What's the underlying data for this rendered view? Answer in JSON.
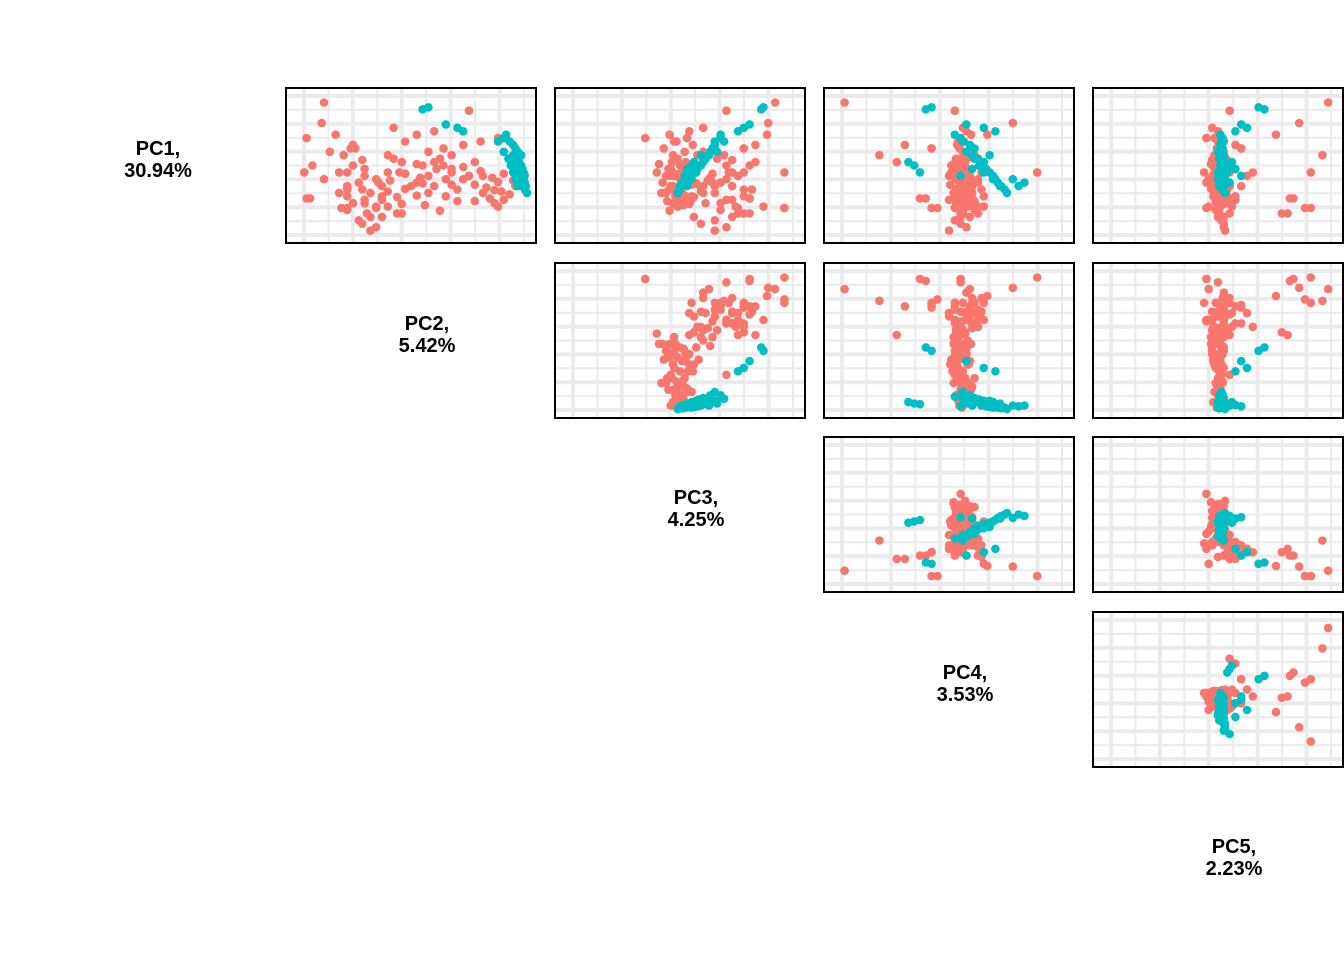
{
  "colors": {
    "group_a": "#F8766D",
    "group_b": "#00BFC4",
    "grid": "#EBEBEB",
    "panel_border": "#000000",
    "background": "#FFFFFF"
  },
  "chart_data": {
    "type": "scatter",
    "layout": "pairs-matrix-upper-triangle",
    "grid": true,
    "legend": "none",
    "axis_ticks_shown": false,
    "diagonal_labels": [
      {
        "line1": "PC1,",
        "line2": "30.94%"
      },
      {
        "line1": "PC2,",
        "line2": "5.42%"
      },
      {
        "line1": "PC3,",
        "line2": "4.25%"
      },
      {
        "line1": "PC4,",
        "line2": "3.53%"
      },
      {
        "line1": "PC5,",
        "line2": "2.23%"
      }
    ],
    "ranges": {
      "PC1": [
        -1.0,
        1.0
      ],
      "PC2": [
        -1.0,
        1.0
      ],
      "PC3": [
        -1.0,
        1.0
      ],
      "PC4": [
        -1.0,
        1.0
      ],
      "PC5": [
        -1.0,
        1.0
      ]
    },
    "groups": [
      "group_a",
      "group_b"
    ],
    "scores": [
      [
        -0.92,
        -0.75,
        0.82,
        -0.9,
        0.95,
        "group_a"
      ],
      [
        0.1,
        -0.92,
        0.9,
        0.76,
        0.8,
        "group_a"
      ],
      [
        0.62,
        -0.6,
        0.9,
        -0.1,
        0.75,
        "group_a"
      ],
      [
        0.62,
        -0.55,
        0.9,
        -0.15,
        0.8,
        "group_a"
      ],
      [
        -0.45,
        -0.65,
        0.75,
        0.33,
        0.5,
        "group_a"
      ],
      [
        -0.25,
        -0.48,
        0.55,
        -0.15,
        0.2,
        "group_a"
      ],
      [
        -0.25,
        -0.52,
        0.55,
        -0.15,
        0.2,
        "group_a"
      ],
      [
        -0.62,
        -0.77,
        0.76,
        0.55,
        0.7,
        "group_a"
      ],
      [
        -0.15,
        -0.58,
        0.38,
        -0.6,
        0.9,
        "group_a"
      ],
      [
        0.7,
        -0.08,
        0.5,
        0.1,
        0.6,
        "group_a"
      ],
      [
        0.7,
        -0.12,
        0.55,
        0.12,
        0.55,
        "group_a"
      ],
      [
        0.48,
        -0.9,
        0.6,
        -0.25,
        0.65,
        "group_a"
      ],
      [
        0.48,
        -0.87,
        0.6,
        -0.2,
        0.62,
        "group_a"
      ],
      [
        -0.3,
        -0.5,
        0.65,
        -0.38,
        0.15,
        "group_a"
      ],
      [
        -0.05,
        -0.08,
        0.65,
        -0.45,
        0.1,
        "group_a"
      ],
      [
        0.0,
        -0.85,
        0.4,
        0.1,
        0.0,
        "group_a"
      ],
      [
        -0.2,
        -0.7,
        0.2,
        0.15,
        0.05,
        "group_a"
      ],
      [
        0.3,
        -0.55,
        0.3,
        0.2,
        0.1,
        "group_a"
      ],
      [
        0.25,
        -0.45,
        0.35,
        0.25,
        0.05,
        "group_a"
      ],
      [
        0.5,
        -0.4,
        0.45,
        0.0,
        0.12,
        "group_a"
      ],
      [
        0.62,
        -0.3,
        0.5,
        0.05,
        -0.1,
        "group_a"
      ],
      [
        0.75,
        -0.25,
        0.45,
        0.1,
        0.05,
        "group_a"
      ],
      [
        0.4,
        -0.35,
        0.3,
        0.15,
        0.0,
        "group_a"
      ],
      [
        0.2,
        -0.3,
        0.4,
        0.25,
        -0.05,
        "group_a"
      ],
      [
        0.1,
        -0.62,
        0.45,
        0.28,
        0.1,
        "group_a"
      ],
      [
        0.0,
        -0.5,
        0.6,
        0.05,
        0.05,
        "group_a"
      ],
      [
        0.35,
        -0.55,
        0.55,
        0.12,
        0.08,
        "group_a"
      ],
      [
        0.55,
        -0.5,
        0.35,
        0.18,
        0.02,
        "group_a"
      ],
      [
        0.65,
        -0.55,
        0.35,
        0.22,
        -0.02,
        "group_a"
      ],
      [
        0.4,
        -0.62,
        0.2,
        0.2,
        0.04,
        "group_a"
      ],
      [
        0.45,
        -0.55,
        0.1,
        0.3,
        0.08,
        "group_a"
      ],
      [
        0.55,
        -0.4,
        0.22,
        0.2,
        0.06,
        "group_a"
      ],
      [
        0.75,
        -0.35,
        0.12,
        0.18,
        0.0,
        "group_a"
      ],
      [
        0.85,
        -0.42,
        0.18,
        0.1,
        0.05,
        "group_a"
      ],
      [
        0.8,
        -0.45,
        0.3,
        0.05,
        0.03,
        "group_a"
      ],
      [
        0.7,
        -0.38,
        0.6,
        0.25,
        0.1,
        "group_a"
      ],
      [
        0.6,
        -0.3,
        0.72,
        0.3,
        -0.08,
        "group_a"
      ],
      [
        0.45,
        -0.25,
        0.55,
        0.05,
        0.15,
        "group_a"
      ],
      [
        0.3,
        -0.25,
        0.45,
        0.2,
        0.2,
        "group_a"
      ],
      [
        0.15,
        -0.4,
        0.5,
        0.0,
        0.25,
        "group_a"
      ],
      [
        0.1,
        -0.2,
        0.55,
        0.1,
        0.3,
        "group_a"
      ],
      [
        0.25,
        -0.28,
        0.28,
        0.1,
        -0.1,
        "group_a"
      ],
      [
        0.35,
        -0.42,
        0.62,
        0.28,
        0.0,
        "group_a"
      ],
      [
        0.5,
        -0.25,
        0.4,
        0.2,
        0.15,
        "group_a"
      ],
      [
        0.6,
        -0.2,
        0.48,
        0.25,
        0.12,
        "group_a"
      ],
      [
        0.9,
        -0.3,
        0.4,
        0.15,
        0.05,
        "group_a"
      ],
      [
        0.95,
        -0.35,
        0.3,
        0.0,
        0.06,
        "group_a"
      ],
      [
        -0.08,
        -0.42,
        0.45,
        0.15,
        -0.05,
        "group_a"
      ],
      [
        0.1,
        -0.55,
        0.42,
        0.05,
        -0.12,
        "group_a"
      ],
      [
        -0.05,
        0.2,
        0.05,
        0.08,
        -0.05,
        "group_a"
      ],
      [
        0.0,
        0.1,
        0.0,
        0.12,
        0.05,
        "group_a"
      ],
      [
        0.05,
        0.22,
        -0.1,
        0.05,
        0.0,
        "group_a"
      ],
      [
        0.15,
        0.15,
        -0.05,
        0.1,
        -0.05,
        "group_a"
      ],
      [
        0.2,
        0.3,
        0.02,
        0.06,
        0.02,
        "group_a"
      ],
      [
        0.3,
        0.2,
        -0.08,
        0.15,
        0.04,
        "group_a"
      ],
      [
        0.25,
        0.05,
        -0.15,
        0.12,
        0.0,
        "group_a"
      ],
      [
        0.1,
        0.35,
        0.08,
        0.02,
        -0.02,
        "group_a"
      ],
      [
        -0.1,
        0.25,
        -0.02,
        0.1,
        0.02,
        "group_a"
      ],
      [
        0.35,
        0.4,
        -0.05,
        0.08,
        0.05,
        "group_a"
      ],
      [
        0.45,
        0.3,
        0.05,
        0.18,
        -0.04,
        "group_a"
      ],
      [
        0.4,
        0.15,
        -0.12,
        0.05,
        0.05,
        "group_a"
      ],
      [
        0.2,
        0.45,
        0.0,
        0.12,
        0.01,
        "group_a"
      ],
      [
        0.05,
        0.35,
        0.12,
        0.16,
        -0.03,
        "group_a"
      ],
      [
        0.15,
        0.5,
        -0.08,
        0.09,
        0.03,
        "group_a"
      ],
      [
        0.28,
        0.55,
        0.04,
        0.14,
        0.0,
        "group_a"
      ],
      [
        -0.02,
        0.05,
        -0.18,
        0.04,
        -0.06,
        "group_a"
      ],
      [
        0.08,
        0.6,
        0.02,
        0.07,
        0.04,
        "group_a"
      ],
      [
        0.32,
        0.65,
        -0.02,
        0.11,
        -0.01,
        "group_a"
      ],
      [
        0.18,
        0.7,
        0.06,
        0.13,
        0.02,
        "group_a"
      ],
      [
        0.12,
        0.8,
        -0.04,
        0.06,
        0.0,
        "group_a"
      ],
      [
        0.24,
        0.75,
        0.1,
        0.1,
        -0.02,
        "group_a"
      ],
      [
        0.38,
        0.78,
        -0.01,
        0.17,
        0.03,
        "group_a"
      ],
      [
        0.42,
        0.85,
        0.03,
        0.09,
        0.01,
        "group_a"
      ],
      [
        0.3,
        0.9,
        -0.06,
        0.12,
        -0.04,
        "group_a"
      ],
      [
        0.22,
        0.88,
        0.01,
        0.08,
        0.0,
        "group_a"
      ],
      [
        0.36,
        0.72,
        -0.1,
        0.19,
        0.02,
        "group_a"
      ],
      [
        0.5,
        0.8,
        0.0,
        0.14,
        0.04,
        "group_a"
      ],
      [
        0.55,
        0.72,
        -0.06,
        0.1,
        -0.01,
        "group_a"
      ],
      [
        0.48,
        0.68,
        0.04,
        0.2,
        0.02,
        "group_a"
      ],
      [
        0.6,
        0.75,
        -0.02,
        0.16,
        0.0,
        "group_a"
      ],
      [
        0.15,
        0.62,
        -0.12,
        0.18,
        -0.02,
        "group_a"
      ],
      [
        -0.05,
        0.55,
        -0.07,
        0.14,
        0.01,
        "group_a"
      ],
      [
        0.02,
        0.45,
        0.07,
        0.03,
        0.03,
        "group_a"
      ],
      [
        0.26,
        0.1,
        0.14,
        0.11,
        -0.05,
        "group_a"
      ],
      [
        0.44,
        0.05,
        -0.04,
        0.06,
        -0.03,
        "group_a"
      ],
      [
        0.58,
        0.12,
        0.03,
        0.15,
        0.03,
        "group_a"
      ],
      [
        0.66,
        0.25,
        -0.09,
        0.12,
        0.01,
        "group_a"
      ],
      [
        0.52,
        0.4,
        0.09,
        0.08,
        -0.02,
        "group_a"
      ],
      [
        -0.15,
        0.35,
        -0.06,
        0.17,
        0.0,
        "group_a"
      ],
      [
        -0.2,
        0.15,
        0.04,
        0.12,
        0.04,
        "group_a"
      ],
      [
        -0.25,
        0.28,
        -0.14,
        0.09,
        -0.01,
        "group_a"
      ],
      [
        -0.3,
        0.45,
        0.11,
        0.07,
        0.02,
        "group_a"
      ],
      [
        -0.35,
        0.6,
        -0.03,
        0.13,
        0.03,
        "group_a"
      ],
      [
        -0.4,
        0.75,
        0.06,
        0.1,
        -0.03,
        "group_a"
      ],
      [
        0.05,
        0.95,
        -0.08,
        0.09,
        0.02,
        "group_a"
      ],
      [
        0.14,
        0.98,
        0.02,
        0.11,
        -0.01,
        "group_a"
      ],
      [
        0.4,
        0.62,
        -0.16,
        0.04,
        0.04,
        "group_a"
      ],
      [
        0.0,
        0.28,
        0.16,
        0.02,
        -0.04,
        "group_a"
      ],
      [
        -0.45,
        0.05,
        -0.09,
        0.19,
        0.02,
        "group_a"
      ],
      [
        -0.5,
        0.2,
        0.08,
        0.15,
        0.0,
        "group_a"
      ],
      [
        0.1,
        -0.1,
        -0.2,
        0.14,
        0.06,
        "group_a"
      ],
      [
        0.34,
        -0.05,
        0.18,
        0.06,
        -0.06,
        "group_a"
      ],
      [
        0.52,
        0.55,
        -0.11,
        0.22,
        0.01,
        "group_a"
      ],
      [
        0.28,
        0.35,
        0.1,
        0.01,
        0.03,
        "group_a"
      ],
      [
        -0.4,
        -0.9,
        -0.3,
        0.1,
        -0.1,
        "group_a"
      ],
      [
        -0.8,
        0.5,
        0.4,
        0.05,
        0.1,
        "group_a"
      ],
      [
        -0.55,
        -0.15,
        0.2,
        0.12,
        -0.05,
        "group_a"
      ],
      [
        -0.35,
        -0.05,
        -0.05,
        0.08,
        0.0,
        "group_a"
      ],
      [
        0.2,
        -0.75,
        0.25,
        0.18,
        -0.08,
        "group_a"
      ],
      [
        -0.15,
        -0.2,
        0.15,
        0.22,
        -0.03,
        "group_a"
      ],
      [
        0.05,
        -0.4,
        0.08,
        0.16,
        0.02,
        "group_a"
      ],
      [
        -0.1,
        -0.15,
        0.32,
        0.06,
        0.07,
        "group_a"
      ],
      [
        0.22,
        -0.18,
        0.24,
        0.2,
        0.01,
        "group_a"
      ],
      [
        0.38,
        -0.2,
        0.18,
        0.1,
        -0.04,
        "group_a"
      ],
      [
        0.12,
        -0.05,
        0.28,
        0.04,
        0.05,
        "group_a"
      ],
      [
        0.46,
        -0.12,
        0.12,
        0.14,
        0.0,
        "group_a"
      ],
      [
        0.56,
        -0.08,
        0.08,
        0.06,
        0.03,
        "group_a"
      ],
      [
        0.3,
        0.0,
        0.2,
        0.16,
        -0.02,
        "group_a"
      ],
      [
        0.18,
        0.08,
        0.26,
        0.08,
        0.04,
        "group_a"
      ],
      [
        -0.45,
        0.82,
        0.35,
        0.05,
        0.02,
        "group_b"
      ],
      [
        -0.35,
        0.85,
        0.38,
        0.12,
        0.05,
        "group_b"
      ],
      [
        -0.3,
        0.88,
        0.3,
        0.18,
        0.02,
        "group_b"
      ],
      [
        -0.25,
        0.9,
        0.28,
        0.22,
        0.04,
        "group_b"
      ],
      [
        -0.2,
        0.92,
        0.32,
        0.15,
        0.0,
        "group_b"
      ],
      [
        -0.15,
        0.95,
        0.25,
        0.2,
        0.03,
        "group_b"
      ],
      [
        -0.1,
        0.9,
        0.22,
        0.25,
        0.01,
        "group_b"
      ],
      [
        -0.05,
        0.93,
        0.2,
        0.3,
        0.05,
        "group_b"
      ],
      [
        0.0,
        0.95,
        0.18,
        0.28,
        0.02,
        "group_b"
      ],
      [
        0.05,
        0.96,
        0.15,
        0.32,
        0.04,
        "group_b"
      ],
      [
        0.1,
        0.97,
        0.12,
        0.35,
        0.0,
        "group_b"
      ],
      [
        0.15,
        0.98,
        0.1,
        0.38,
        0.03,
        "group_b"
      ],
      [
        0.2,
        0.97,
        0.08,
        0.4,
        0.02,
        "group_b"
      ],
      [
        0.25,
        0.98,
        0.05,
        0.42,
        0.05,
        "group_b"
      ],
      [
        0.3,
        0.99,
        0.02,
        0.45,
        0.01,
        "group_b"
      ],
      [
        0.35,
        0.98,
        0.0,
        0.48,
        0.04,
        "group_b"
      ],
      [
        0.4,
        1.0,
        -0.02,
        0.5,
        0.06,
        "group_b"
      ],
      [
        0.3,
        0.92,
        0.06,
        0.44,
        0.02,
        "group_b"
      ],
      [
        0.2,
        0.9,
        0.1,
        0.38,
        0.0,
        "group_b"
      ],
      [
        0.1,
        0.88,
        0.14,
        0.3,
        0.03,
        "group_b"
      ],
      [
        0.0,
        0.86,
        0.16,
        0.26,
        0.02,
        "group_b"
      ],
      [
        -0.1,
        0.84,
        0.2,
        0.22,
        0.05,
        "group_b"
      ],
      [
        -0.2,
        0.8,
        0.26,
        0.18,
        0.01,
        "group_b"
      ],
      [
        -0.35,
        0.75,
        0.3,
        0.12,
        0.03,
        "group_b"
      ],
      [
        -0.4,
        0.8,
        0.35,
        0.1,
        0.04,
        "group_b"
      ],
      [
        -0.82,
        0.1,
        0.7,
        -0.2,
        0.4,
        "group_b"
      ],
      [
        -0.85,
        0.15,
        0.72,
        -0.15,
        0.35,
        "group_b"
      ],
      [
        -0.6,
        0.3,
        0.6,
        0.15,
        0.2,
        "group_b"
      ],
      [
        -0.55,
        0.4,
        0.55,
        0.3,
        0.25,
        "group_b"
      ],
      [
        -0.5,
        0.45,
        0.5,
        0.4,
        0.15,
        "group_b"
      ],
      [
        0.2,
        0.95,
        0.05,
        0.55,
        0.06,
        "group_b"
      ],
      [
        0.3,
        0.96,
        0.0,
        0.6,
        0.05,
        "group_b"
      ],
      [
        0.0,
        0.92,
        0.1,
        -0.3,
        0.1,
        "group_b"
      ],
      [
        0.1,
        0.93,
        0.08,
        -0.25,
        0.08,
        "group_b"
      ],
      [
        -0.05,
        0.9,
        0.12,
        -0.35,
        0.12,
        "group_b"
      ],
      [
        0.05,
        0.94,
        0.06,
        0.2,
        0.15,
        "group_b"
      ],
      [
        0.15,
        0.96,
        0.04,
        0.1,
        0.2,
        "group_b"
      ],
      [
        0.25,
        0.95,
        0.02,
        0.65,
        0.1,
        "group_b"
      ],
      [
        -0.15,
        0.88,
        0.18,
        0.35,
        0.05,
        "group_b"
      ]
    ]
  }
}
